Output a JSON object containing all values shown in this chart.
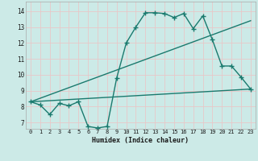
{
  "xlabel": "Humidex (Indice chaleur)",
  "bg_color": "#cceae7",
  "grid_color": "#e8c8c8",
  "line_color": "#1a7a6e",
  "x_ticks": [
    0,
    1,
    2,
    3,
    4,
    5,
    6,
    7,
    8,
    9,
    10,
    11,
    12,
    13,
    14,
    15,
    16,
    17,
    18,
    19,
    20,
    21,
    22,
    23
  ],
  "y_ticks": [
    7,
    8,
    9,
    10,
    11,
    12,
    13,
    14
  ],
  "ylim": [
    6.6,
    14.6
  ],
  "xlim": [
    -0.5,
    23.5
  ],
  "line1_x": [
    0,
    1,
    2,
    3,
    4,
    5,
    6,
    7,
    8,
    9,
    10,
    11,
    12,
    13,
    14,
    15,
    16,
    17,
    18,
    19,
    20,
    21,
    22,
    23
  ],
  "line1_y": [
    8.3,
    8.1,
    7.5,
    8.2,
    8.05,
    8.3,
    6.75,
    6.65,
    6.75,
    9.8,
    12.0,
    13.0,
    13.9,
    13.9,
    13.85,
    13.6,
    13.85,
    12.9,
    13.7,
    12.2,
    10.55,
    10.55,
    9.85,
    9.1
  ],
  "line2_x": [
    0,
    23
  ],
  "line2_y": [
    8.3,
    13.4
  ],
  "line3_x": [
    0,
    23
  ],
  "line3_y": [
    8.3,
    9.1
  ],
  "marker": "+",
  "markersize": 4,
  "linewidth": 1.0
}
